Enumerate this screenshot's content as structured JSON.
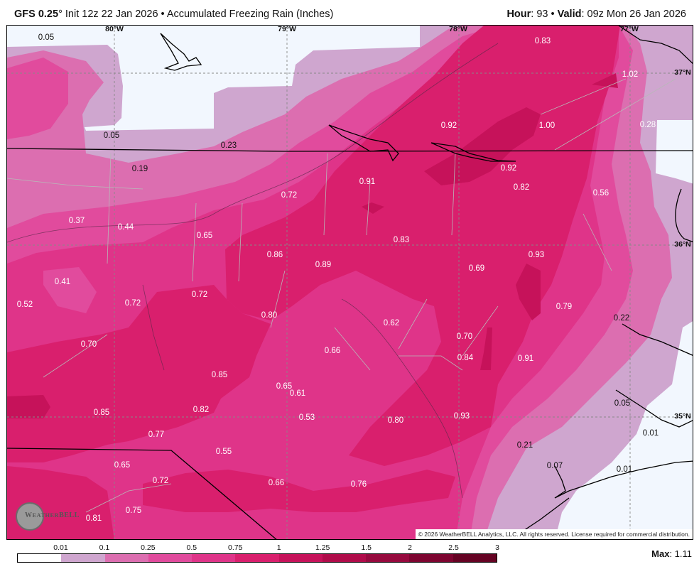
{
  "header": {
    "model": "GFS 0.25",
    "degree": "°",
    "init": " Init 12z 22 Jan 2026 • Accumulated Freezing Rain (Inches)",
    "hour_label": "Hour",
    "hour_value": ": 93 • ",
    "valid_label": "Valid",
    "valid_value": ": 09z Mon 26 Jan 2026"
  },
  "map": {
    "lon_labels": [
      "80°W",
      "79°W",
      "78°W",
      "77°W"
    ],
    "lat_labels": [
      "37°N",
      "36°N",
      "35°N"
    ],
    "labels": [
      {
        "value": "0.05"
      },
      {
        "value": "0.83"
      },
      {
        "value": "1.02"
      },
      {
        "value": "0.05"
      },
      {
        "value": "0.92"
      },
      {
        "value": "1.00"
      },
      {
        "value": "0.28"
      },
      {
        "value": "0.23"
      },
      {
        "value": "0.19"
      },
      {
        "value": "0.91"
      },
      {
        "value": "0.92"
      },
      {
        "value": "0.82"
      },
      {
        "value": "0.56"
      },
      {
        "value": "0.72"
      },
      {
        "value": "0.37"
      },
      {
        "value": "0.44"
      },
      {
        "value": "0.65"
      },
      {
        "value": "0.83"
      },
      {
        "value": "0.86"
      },
      {
        "value": "0.89"
      },
      {
        "value": "0.93"
      },
      {
        "value": "0.69"
      },
      {
        "value": "0.41"
      },
      {
        "value": "0.52"
      },
      {
        "value": "0.72"
      },
      {
        "value": "0.72"
      },
      {
        "value": "0.80"
      },
      {
        "value": "0.62"
      },
      {
        "value": "0.79"
      },
      {
        "value": "0.22"
      },
      {
        "value": "0.70"
      },
      {
        "value": "0.66"
      },
      {
        "value": "0.70"
      },
      {
        "value": "0.84"
      },
      {
        "value": "0.91"
      },
      {
        "value": "0.85"
      },
      {
        "value": "0.65"
      },
      {
        "value": "0.61"
      },
      {
        "value": "0.85"
      },
      {
        "value": "0.82"
      },
      {
        "value": "0.53"
      },
      {
        "value": "0.80"
      },
      {
        "value": "0.93"
      },
      {
        "value": "0.05"
      },
      {
        "value": "0.01"
      },
      {
        "value": "0.77"
      },
      {
        "value": "0.21"
      },
      {
        "value": "0.55"
      },
      {
        "value": "0.65"
      },
      {
        "value": "0.07"
      },
      {
        "value": "0.01"
      },
      {
        "value": "0.72"
      },
      {
        "value": "0.66"
      },
      {
        "value": "0.76"
      },
      {
        "value": "0.75"
      },
      {
        "value": "0.81"
      }
    ],
    "copyright": "© 2026 WeatherBELL Analytics, LLC. All rights reserved. License required for commercial distribution.",
    "logo_text": "WeatherBELL"
  },
  "legend": {
    "ticks": [
      "0.01",
      "0.1",
      "0.25",
      "0.5",
      "0.75",
      "1",
      "1.25",
      "1.5",
      "2",
      "2.5",
      "3"
    ],
    "colors": [
      "#ffffff",
      "#cfa6cf",
      "#dc6eb0",
      "#e14b9d",
      "#df3489",
      "#d91f6d",
      "#c6125a",
      "#b00c4a",
      "#960a3e",
      "#7d0530",
      "#650323"
    ],
    "max_label": "Max",
    "max_value": ": 1.11"
  }
}
